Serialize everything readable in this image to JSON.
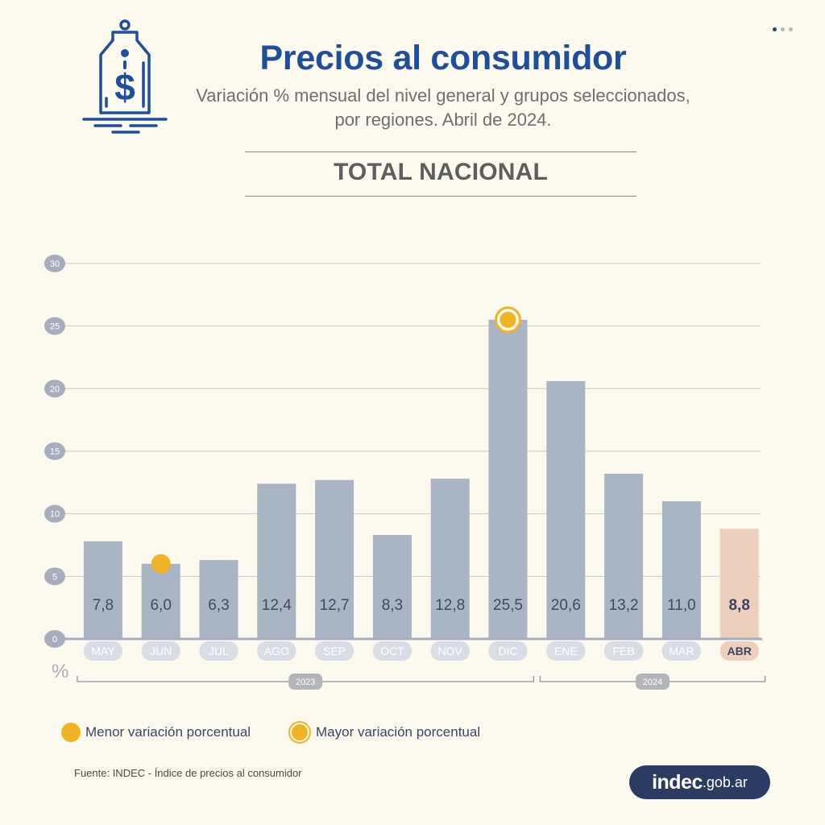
{
  "header": {
    "title": "Precios al consumidor",
    "subtitle_line1": "Variación % mensual del nivel general y grupos seleccionados,",
    "subtitle_line2": "por regiones. Abril de 2024.",
    "section_title": "TOTAL NACIONAL",
    "icon": "price-tag-dollar-icon"
  },
  "colors": {
    "title": "#1f4e9b",
    "bar": "#a9b4c5",
    "bar_highlight": "#ecd0bd",
    "marker": "#f0b323",
    "brand_bg": "#2b3b62"
  },
  "chart_data": {
    "type": "bar",
    "categories": [
      "MAY",
      "JUN",
      "JUL",
      "AGO",
      "SEP",
      "OCT",
      "NOV",
      "DIC",
      "ENE",
      "FEB",
      "MAR",
      "ABR"
    ],
    "values": [
      7.8,
      6.0,
      6.3,
      12.4,
      12.7,
      8.3,
      12.8,
      25.5,
      20.6,
      13.2,
      11.0,
      8.8
    ],
    "value_labels": [
      "7,8",
      "6,0",
      "6,3",
      "12,4",
      "12,7",
      "8,3",
      "12,8",
      "25,5",
      "20,6",
      "13,2",
      "11,0",
      "8,8"
    ],
    "highlight_category": "ABR",
    "min_marker_category": "JUN",
    "max_marker_category": "DIC",
    "ylim": [
      0,
      30
    ],
    "yticks": [
      0,
      5,
      10,
      15,
      20,
      25,
      30
    ],
    "ylabel": "%",
    "grid": true,
    "year_groups": [
      {
        "label": "2023",
        "from": "MAY",
        "to": "DIC"
      },
      {
        "label": "2024",
        "from": "ENE",
        "to": "ABR"
      }
    ]
  },
  "legend": {
    "min_label": "Menor variación porcentual",
    "max_label": "Mayor variación porcentual"
  },
  "footer": {
    "source": "Fuente: INDEC - Índice de precios al consumidor",
    "brand_main": "indec",
    "brand_suffix": ".gob.ar"
  }
}
